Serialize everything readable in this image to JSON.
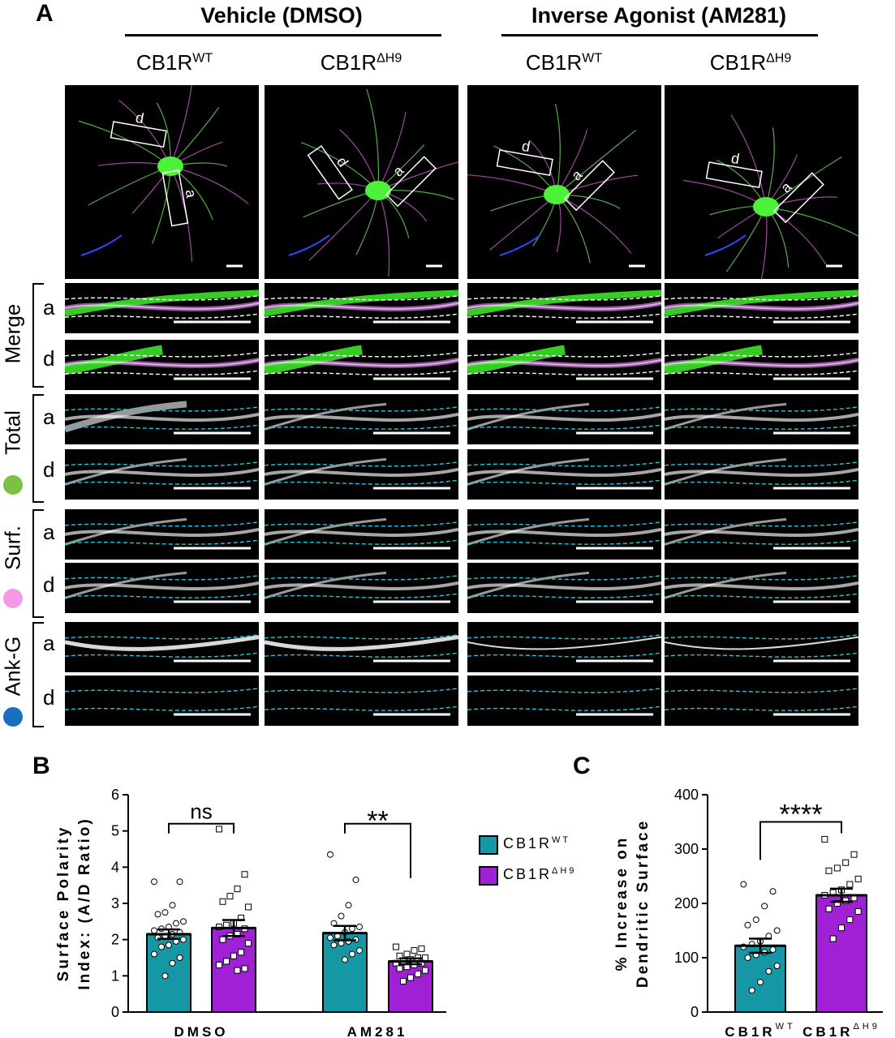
{
  "figure": {
    "panel_a_letter": "A",
    "panel_b_letter": "B",
    "panel_c_letter": "C",
    "group_headers": [
      "Vehicle (DMSO)",
      "Inverse Agonist (AM281)"
    ],
    "columns": [
      {
        "base": "CB1R",
        "sup": "WT"
      },
      {
        "base": "CB1R",
        "sup": "ΔH9"
      },
      {
        "base": "CB1R",
        "sup": "WT"
      },
      {
        "base": "CB1R",
        "sup": "ΔH9"
      }
    ],
    "row_groups": [
      {
        "label": "Merge",
        "dot_color": null
      },
      {
        "label": "Total",
        "dot_color": "#7cc142"
      },
      {
        "label": "Surf.",
        "dot_color": "#f29ae6"
      },
      {
        "label": "Ank-G",
        "dot_color": "#1a6fc0"
      }
    ],
    "sub_rows": [
      "a",
      "d"
    ],
    "roi_labels": {
      "axon": "a",
      "dendrite": "d"
    }
  },
  "chart_data": [
    {
      "type": "bar",
      "panel": "B",
      "categories": [
        "DMSO",
        "AM281"
      ],
      "ylabel": "Surface Polarity Index: (A/D Ratio)",
      "ylim": [
        0,
        6
      ],
      "yticks": [
        0,
        1,
        2,
        3,
        4,
        5,
        6
      ],
      "series": [
        {
          "name": "CB1R WT",
          "color": "#1697a6",
          "marker": "circle",
          "values": [
            2.15,
            2.18
          ],
          "sem": [
            0.13,
            0.2
          ],
          "points": [
            [
              3.6,
              3.6,
              2.95,
              2.75,
              2.7,
              2.5,
              2.45,
              2.35,
              2.3,
              2.25,
              2.2,
              2.15,
              2.1,
              2.05,
              2.0,
              1.95,
              1.85,
              1.8,
              1.6,
              1.5,
              1.35,
              1.0
            ],
            [
              4.35,
              3.65,
              2.95,
              2.65,
              2.45,
              2.35,
              2.3,
              2.2,
              2.1,
              2.05,
              2.0,
              1.95,
              1.9,
              1.85,
              1.7,
              1.6,
              1.45
            ]
          ]
        },
        {
          "name": "CB1R ΔH9",
          "color": "#a020d6",
          "marker": "square",
          "values": [
            2.32,
            1.4
          ],
          "sem": [
            0.22,
            0.08
          ],
          "points": [
            [
              5.05,
              3.8,
              3.4,
              3.2,
              3.05,
              2.9,
              2.6,
              2.45,
              2.4,
              2.35,
              2.3,
              2.15,
              2.1,
              2.0,
              1.9,
              1.65,
              1.55,
              1.4,
              1.3,
              1.2,
              1.15
            ],
            [
              1.8,
              1.75,
              1.7,
              1.6,
              1.55,
              1.5,
              1.5,
              1.45,
              1.4,
              1.35,
              1.35,
              1.3,
              1.25,
              1.2,
              1.15,
              1.05,
              0.95,
              0.85
            ]
          ]
        }
      ],
      "significance": [
        "ns",
        "**"
      ],
      "legend": [
        {
          "base": "CB1R",
          "sup": "WT",
          "color": "#1697a6"
        },
        {
          "base": "CB1R",
          "sup": "ΔH9",
          "color": "#a020d6"
        }
      ]
    },
    {
      "type": "bar",
      "panel": "C",
      "categories": [
        {
          "base": "CB1R",
          "sup": "WT"
        },
        {
          "base": "CB1R",
          "sup": "ΔH9"
        }
      ],
      "ylabel": "% Increase on Dendritic Surface",
      "ylim": [
        0,
        400
      ],
      "yticks": [
        0,
        100,
        200,
        300,
        400
      ],
      "values": [
        122,
        215
      ],
      "sem": [
        13,
        12
      ],
      "colors": [
        "#1697a6",
        "#a020d6"
      ],
      "markers": [
        "circle",
        "square"
      ],
      "points": [
        [
          235,
          222,
          195,
          170,
          160,
          150,
          140,
          130,
          125,
          120,
          115,
          110,
          105,
          100,
          85,
          75,
          55,
          40
        ],
        [
          318,
          290,
          275,
          265,
          260,
          245,
          235,
          225,
          220,
          215,
          210,
          205,
          200,
          190,
          185,
          170,
          155,
          135
        ]
      ],
      "significance": "****"
    }
  ]
}
